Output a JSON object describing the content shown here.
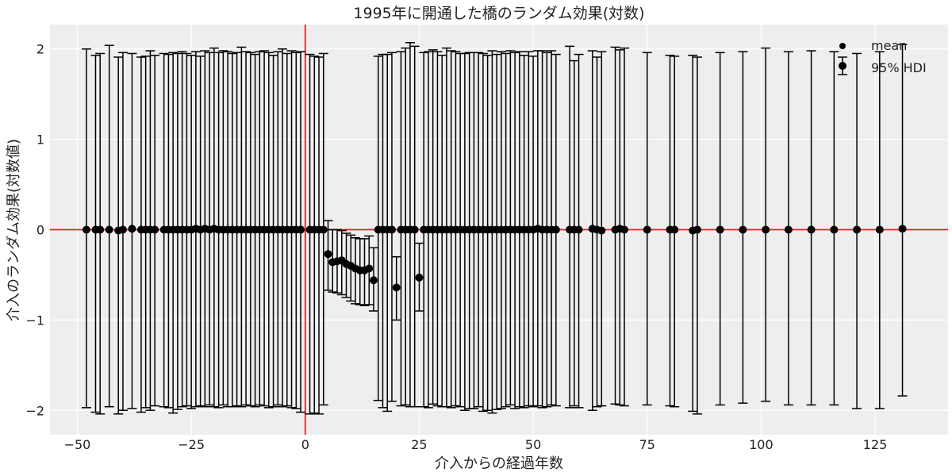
{
  "chart_data": {
    "type": "scatter",
    "title": "1995年に開通した橋のランダム効果(対数)",
    "xlabel": "介入からの経過年数",
    "ylabel": "介入のランダム効果(対数値)",
    "xlim": [
      -56,
      141
    ],
    "ylim": [
      -2.27,
      2.27
    ],
    "x_ticks": [
      -50,
      -25,
      0,
      25,
      50,
      75,
      100,
      125
    ],
    "y_ticks": [
      -2,
      -1,
      0,
      1,
      2
    ],
    "x_tick_labels": [
      "−50",
      "−25",
      "0",
      "25",
      "50",
      "75",
      "100",
      "125"
    ],
    "y_tick_labels": [
      "−2",
      "−1",
      "0",
      "1",
      "2"
    ],
    "grid": true,
    "reference_lines": {
      "vertical_x": 0,
      "horizontal_y": 0,
      "color": "#e8201f"
    },
    "legend": {
      "placement": "top-right",
      "entries": [
        "mean",
        "95% HDI"
      ]
    },
    "series": [
      {
        "kind": "errorbar",
        "points": [
          {
            "x": -48,
            "mean": 0.0,
            "lo": -1.97,
            "hi": 2.0
          },
          {
            "x": -46,
            "mean": 0.0,
            "lo": -2.02,
            "hi": 1.93
          },
          {
            "x": -45,
            "mean": 0.0,
            "lo": -2.04,
            "hi": 1.95
          },
          {
            "x": -43,
            "mean": 0.0,
            "lo": -1.96,
            "hi": 2.04
          },
          {
            "x": -41,
            "mean": -0.01,
            "lo": -2.04,
            "hi": 1.91
          },
          {
            "x": -40,
            "mean": 0.0,
            "lo": -2.0,
            "hi": 1.96
          },
          {
            "x": -38,
            "mean": 0.01,
            "lo": -1.98,
            "hi": 1.95
          },
          {
            "x": -36,
            "mean": 0.0,
            "lo": -2.02,
            "hi": 1.91
          },
          {
            "x": -35,
            "mean": 0.0,
            "lo": -1.97,
            "hi": 1.92
          },
          {
            "x": -34,
            "mean": 0.0,
            "lo": -2.0,
            "hi": 1.98
          },
          {
            "x": -33,
            "mean": 0.0,
            "lo": -1.95,
            "hi": 1.93
          },
          {
            "x": -31,
            "mean": 0.0,
            "lo": -1.96,
            "hi": 1.95
          },
          {
            "x": -30,
            "mean": 0.0,
            "lo": -1.97,
            "hi": 1.94
          },
          {
            "x": -29,
            "mean": 0.0,
            "lo": -2.03,
            "hi": 1.96
          },
          {
            "x": -28,
            "mean": 0.0,
            "lo": -1.99,
            "hi": 1.95
          },
          {
            "x": -27,
            "mean": 0.0,
            "lo": -1.96,
            "hi": 1.97
          },
          {
            "x": -26,
            "mean": 0.0,
            "lo": -1.95,
            "hi": 1.95
          },
          {
            "x": -25,
            "mean": 0.0,
            "lo": -1.98,
            "hi": 1.93
          },
          {
            "x": -24,
            "mean": 0.01,
            "lo": -1.96,
            "hi": 1.97
          },
          {
            "x": -23,
            "mean": 0.0,
            "lo": -1.95,
            "hi": 1.92
          },
          {
            "x": -22,
            "mean": 0.01,
            "lo": -1.96,
            "hi": 1.98
          },
          {
            "x": -21,
            "mean": 0.0,
            "lo": -1.94,
            "hi": 1.96
          },
          {
            "x": -20,
            "mean": 0.01,
            "lo": -1.96,
            "hi": 2.01
          },
          {
            "x": -19,
            "mean": 0.0,
            "lo": -1.97,
            "hi": 1.96
          },
          {
            "x": -18,
            "mean": 0.0,
            "lo": -1.94,
            "hi": 1.98
          },
          {
            "x": -17,
            "mean": 0.0,
            "lo": -1.96,
            "hi": 1.97
          },
          {
            "x": -16,
            "mean": 0.0,
            "lo": -1.96,
            "hi": 1.95
          },
          {
            "x": -15,
            "mean": 0.0,
            "lo": -1.95,
            "hi": 1.96
          },
          {
            "x": -14,
            "mean": 0.0,
            "lo": -1.96,
            "hi": 2.02
          },
          {
            "x": -13,
            "mean": 0.0,
            "lo": -1.94,
            "hi": 1.97
          },
          {
            "x": -12,
            "mean": 0.0,
            "lo": -1.95,
            "hi": 1.96
          },
          {
            "x": -11,
            "mean": 0.0,
            "lo": -1.96,
            "hi": 1.94
          },
          {
            "x": -10,
            "mean": 0.0,
            "lo": -1.94,
            "hi": 1.97
          },
          {
            "x": -9,
            "mean": 0.0,
            "lo": -1.95,
            "hi": 1.98
          },
          {
            "x": -8,
            "mean": 0.0,
            "lo": -1.97,
            "hi": 1.96
          },
          {
            "x": -7,
            "mean": 0.0,
            "lo": -1.96,
            "hi": 1.93
          },
          {
            "x": -6,
            "mean": 0.0,
            "lo": -1.94,
            "hi": 1.97
          },
          {
            "x": -5,
            "mean": 0.0,
            "lo": -1.96,
            "hi": 2.0
          },
          {
            "x": -4,
            "mean": 0.0,
            "lo": -1.95,
            "hi": 1.95
          },
          {
            "x": -3,
            "mean": 0.0,
            "lo": -1.97,
            "hi": 1.98
          },
          {
            "x": -2,
            "mean": 0.0,
            "lo": -1.98,
            "hi": 1.96
          },
          {
            "x": -1,
            "mean": 0.0,
            "lo": -2.02,
            "hi": 1.97
          },
          {
            "x": 1,
            "mean": 0.0,
            "lo": -2.04,
            "hi": 1.94
          },
          {
            "x": 2,
            "mean": 0.0,
            "lo": -2.03,
            "hi": 1.92
          },
          {
            "x": 3,
            "mean": 0.0,
            "lo": -2.04,
            "hi": 1.91
          },
          {
            "x": 4,
            "mean": 0.0,
            "lo": -1.94,
            "hi": 1.95
          },
          {
            "x": 5,
            "mean": -0.27,
            "lo": -0.67,
            "hi": 0.1
          },
          {
            "x": 6,
            "mean": -0.36,
            "lo": -0.69,
            "hi": 0.0
          },
          {
            "x": 7,
            "mean": -0.35,
            "lo": -0.7,
            "hi": 0.0
          },
          {
            "x": 8,
            "mean": -0.34,
            "lo": -0.72,
            "hi": -0.01
          },
          {
            "x": 9,
            "mean": -0.38,
            "lo": -0.75,
            "hi": -0.04
          },
          {
            "x": 10,
            "mean": -0.4,
            "lo": -0.79,
            "hi": -0.06
          },
          {
            "x": 11,
            "mean": -0.43,
            "lo": -0.82,
            "hi": -0.09
          },
          {
            "x": 12,
            "mean": -0.45,
            "lo": -0.83,
            "hi": -0.1
          },
          {
            "x": 13,
            "mean": -0.45,
            "lo": -0.84,
            "hi": -0.1
          },
          {
            "x": 14,
            "mean": -0.43,
            "lo": -0.83,
            "hi": -0.07
          },
          {
            "x": 15,
            "mean": -0.56,
            "lo": -0.9,
            "hi": -0.2
          },
          {
            "x": 16,
            "mean": 0.0,
            "lo": -1.89,
            "hi": 1.92
          },
          {
            "x": 17,
            "mean": 0.0,
            "lo": -1.97,
            "hi": 1.94
          },
          {
            "x": 18,
            "mean": 0.0,
            "lo": -2.01,
            "hi": 1.94
          },
          {
            "x": 19,
            "mean": 0.0,
            "lo": -1.9,
            "hi": 1.96
          },
          {
            "x": 20,
            "mean": -0.64,
            "lo": -1.0,
            "hi": -0.3
          },
          {
            "x": 21,
            "mean": 0.0,
            "lo": -1.95,
            "hi": 1.97
          },
          {
            "x": 22,
            "mean": 0.0,
            "lo": -1.94,
            "hi": 2.01
          },
          {
            "x": 23,
            "mean": 0.0,
            "lo": -1.96,
            "hi": 2.07
          },
          {
            "x": 24,
            "mean": 0.0,
            "lo": -1.96,
            "hi": 2.03
          },
          {
            "x": 25,
            "mean": -0.53,
            "lo": -0.9,
            "hi": -0.15
          },
          {
            "x": 26,
            "mean": 0.0,
            "lo": -1.96,
            "hi": 1.96
          },
          {
            "x": 27,
            "mean": 0.0,
            "lo": -1.97,
            "hi": 1.97
          },
          {
            "x": 28,
            "mean": 0.0,
            "lo": -1.93,
            "hi": 1.99
          },
          {
            "x": 29,
            "mean": 0.0,
            "lo": -1.95,
            "hi": 1.97
          },
          {
            "x": 30,
            "mean": 0.0,
            "lo": -1.96,
            "hi": 1.93
          },
          {
            "x": 31,
            "mean": 0.0,
            "lo": -1.96,
            "hi": 2.01
          },
          {
            "x": 32,
            "mean": 0.0,
            "lo": -1.97,
            "hi": 1.98
          },
          {
            "x": 33,
            "mean": 0.0,
            "lo": -1.95,
            "hi": 1.97
          },
          {
            "x": 34,
            "mean": 0.0,
            "lo": -1.96,
            "hi": 1.95
          },
          {
            "x": 35,
            "mean": 0.0,
            "lo": -2.0,
            "hi": 1.95
          },
          {
            "x": 36,
            "mean": 0.0,
            "lo": -1.98,
            "hi": 1.96
          },
          {
            "x": 37,
            "mean": 0.0,
            "lo": -1.98,
            "hi": 1.96
          },
          {
            "x": 38,
            "mean": 0.0,
            "lo": -1.96,
            "hi": 1.96
          },
          {
            "x": 39,
            "mean": 0.0,
            "lo": -2.01,
            "hi": 1.95
          },
          {
            "x": 40,
            "mean": 0.0,
            "lo": -2.0,
            "hi": 1.93
          },
          {
            "x": 41,
            "mean": 0.0,
            "lo": -2.03,
            "hi": 1.98
          },
          {
            "x": 42,
            "mean": 0.0,
            "lo": -1.99,
            "hi": 1.94
          },
          {
            "x": 43,
            "mean": 0.0,
            "lo": -1.98,
            "hi": 1.97
          },
          {
            "x": 44,
            "mean": 0.0,
            "lo": -1.96,
            "hi": 1.95
          },
          {
            "x": 45,
            "mean": 0.0,
            "lo": -1.94,
            "hi": 1.98
          },
          {
            "x": 46,
            "mean": 0.0,
            "lo": -1.98,
            "hi": 1.96
          },
          {
            "x": 47,
            "mean": 0.0,
            "lo": -1.96,
            "hi": 1.97
          },
          {
            "x": 48,
            "mean": 0.0,
            "lo": -1.97,
            "hi": 1.93
          },
          {
            "x": 49,
            "mean": 0.0,
            "lo": -1.95,
            "hi": 1.97
          },
          {
            "x": 50,
            "mean": 0.0,
            "lo": -1.96,
            "hi": 1.92
          },
          {
            "x": 51,
            "mean": 0.01,
            "lo": -1.95,
            "hi": 1.98
          },
          {
            "x": 52,
            "mean": 0.0,
            "lo": -1.97,
            "hi": 1.98
          },
          {
            "x": 53,
            "mean": 0.0,
            "lo": -1.96,
            "hi": 1.96
          },
          {
            "x": 54,
            "mean": 0.0,
            "lo": -1.94,
            "hi": 1.98
          },
          {
            "x": 55,
            "mean": 0.0,
            "lo": -1.95,
            "hi": 1.94
          },
          {
            "x": 58,
            "mean": 0.0,
            "lo": -1.97,
            "hi": 2.03
          },
          {
            "x": 59,
            "mean": 0.0,
            "lo": -1.95,
            "hi": 1.87
          },
          {
            "x": 60,
            "mean": 0.0,
            "lo": -1.97,
            "hi": 1.94
          },
          {
            "x": 63,
            "mean": 0.01,
            "lo": -2.0,
            "hi": 1.98
          },
          {
            "x": 64,
            "mean": 0.0,
            "lo": -1.96,
            "hi": 1.91
          },
          {
            "x": 65,
            "mean": -0.01,
            "lo": -1.95,
            "hi": 1.97
          },
          {
            "x": 68,
            "mean": 0.0,
            "lo": -1.93,
            "hi": 2.02
          },
          {
            "x": 69,
            "mean": 0.01,
            "lo": -1.94,
            "hi": 1.99
          },
          {
            "x": 70,
            "mean": 0.0,
            "lo": -1.95,
            "hi": 2.01
          },
          {
            "x": 75,
            "mean": 0.0,
            "lo": -1.94,
            "hi": 1.96
          },
          {
            "x": 80,
            "mean": 0.0,
            "lo": -1.95,
            "hi": 1.93
          },
          {
            "x": 81,
            "mean": 0.0,
            "lo": -1.96,
            "hi": 1.92
          },
          {
            "x": 85,
            "mean": -0.01,
            "lo": -2.01,
            "hi": 1.93
          },
          {
            "x": 86,
            "mean": 0.0,
            "lo": -2.04,
            "hi": 1.91
          },
          {
            "x": 91,
            "mean": 0.0,
            "lo": -1.94,
            "hi": 1.96
          },
          {
            "x": 96,
            "mean": 0.0,
            "lo": -1.92,
            "hi": 1.97
          },
          {
            "x": 101,
            "mean": 0.0,
            "lo": -1.9,
            "hi": 2.01
          },
          {
            "x": 106,
            "mean": 0.0,
            "lo": -1.94,
            "hi": 1.97
          },
          {
            "x": 111,
            "mean": 0.0,
            "lo": -1.94,
            "hi": 1.98
          },
          {
            "x": 116,
            "mean": 0.0,
            "lo": -1.94,
            "hi": 1.97
          },
          {
            "x": 121,
            "mean": 0.0,
            "lo": -1.98,
            "hi": 1.95
          },
          {
            "x": 126,
            "mean": 0.0,
            "lo": -1.98,
            "hi": 1.97
          },
          {
            "x": 131,
            "mean": 0.01,
            "lo": -1.84,
            "hi": 2.05
          }
        ]
      }
    ]
  }
}
